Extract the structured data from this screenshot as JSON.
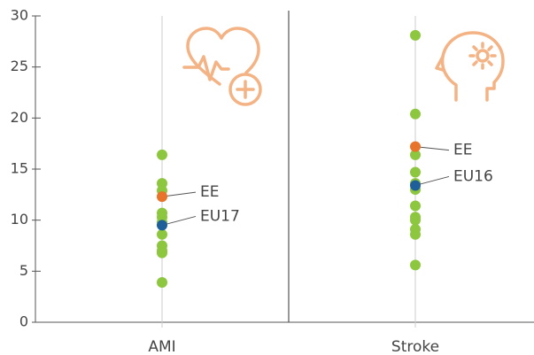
{
  "chart_data": {
    "type": "strip",
    "categories": [
      "AMI",
      "Stroke"
    ],
    "color": "#8dc63f",
    "values": [
      [
        16.4,
        13.6,
        12.9,
        10.7,
        10.3,
        9.8,
        8.6,
        7.5,
        7.0,
        6.8,
        3.9
      ],
      [
        28.1,
        20.4,
        16.4,
        14.7,
        13.6,
        13.0,
        11.4,
        10.3,
        10.0,
        9.1,
        8.6,
        5.6
      ]
    ],
    "highlights": [
      [
        {
          "label": "EE",
          "value": 12.3,
          "color": "#e8732a"
        },
        {
          "label": "EU17",
          "value": 9.5,
          "color": "#1f5f99"
        }
      ],
      [
        {
          "label": "EE",
          "value": 17.2,
          "color": "#e8732a"
        },
        {
          "label": "EU16",
          "value": 13.4,
          "color": "#1f5f99"
        }
      ]
    ],
    "ylim": [
      0,
      30
    ],
    "yticks": [
      0,
      5,
      10,
      15,
      20,
      25,
      30
    ]
  }
}
